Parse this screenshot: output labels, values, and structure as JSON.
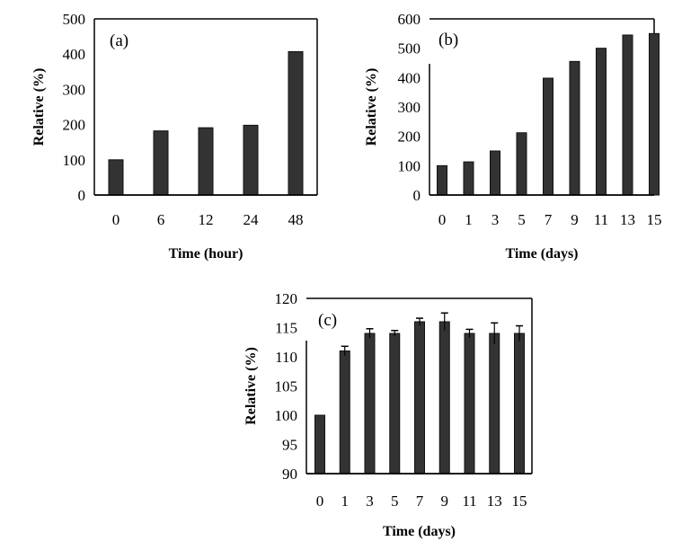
{
  "chart_data": [
    {
      "type": "bar",
      "panel_label": "(a)",
      "xlabel": "Time (hour)",
      "ylabel": "Relative (%)",
      "categories": [
        "0",
        "6",
        "12",
        "24",
        "48"
      ],
      "values": [
        100,
        182,
        191,
        198,
        407
      ],
      "ylim": [
        0,
        500
      ],
      "yticks": [
        0,
        100,
        200,
        300,
        400,
        500
      ],
      "grid": false,
      "bar_color": "#333333"
    },
    {
      "type": "bar",
      "panel_label": "(b)",
      "xlabel": "Time (days)",
      "ylabel": "Relative (%)",
      "categories": [
        "0",
        "1",
        "3",
        "5",
        "7",
        "9",
        "11",
        "13",
        "15"
      ],
      "values": [
        100,
        113,
        150,
        212,
        398,
        455,
        500,
        545,
        550
      ],
      "ylim": [
        0,
        600
      ],
      "yticks": [
        0,
        100,
        200,
        300,
        400,
        500,
        600
      ],
      "grid": false,
      "bar_color": "#333333"
    },
    {
      "type": "bar",
      "panel_label": "(c)",
      "xlabel": "Time (days)",
      "ylabel": "Relative (%)",
      "categories": [
        "0",
        "1",
        "3",
        "5",
        "7",
        "9",
        "11",
        "13",
        "15"
      ],
      "values": [
        100,
        111,
        114,
        114,
        116,
        116,
        114,
        114,
        114
      ],
      "errors": [
        0,
        0.8,
        0.8,
        0.5,
        0.6,
        1.5,
        0.7,
        1.8,
        1.3
      ],
      "ylim": [
        90,
        120
      ],
      "yticks": [
        90,
        95,
        100,
        105,
        110,
        115,
        120
      ],
      "grid": false,
      "bar_color": "#333333"
    }
  ]
}
